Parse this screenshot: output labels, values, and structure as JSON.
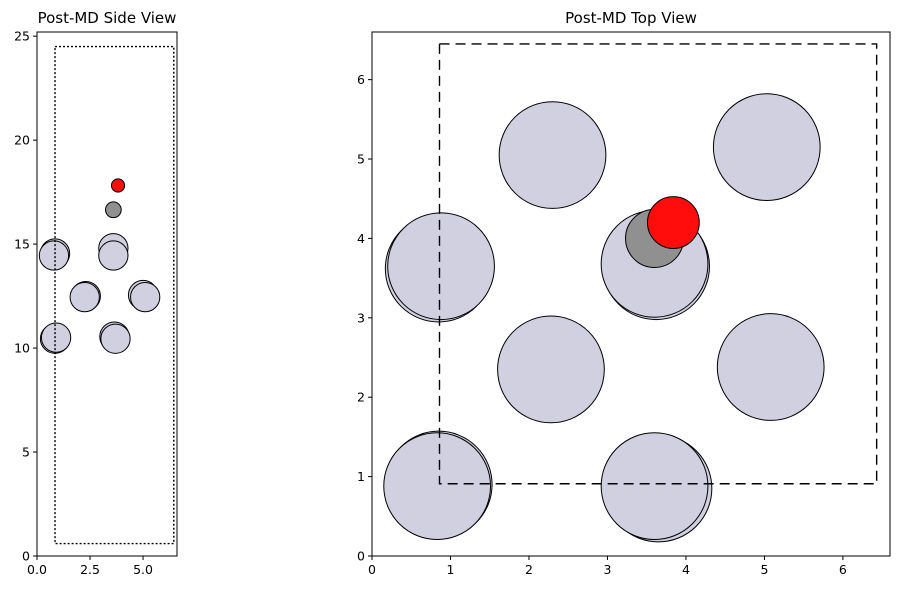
{
  "chart_data": [
    {
      "type": "scatter",
      "title": "Post-MD Side View",
      "xlabel": "",
      "ylabel": "",
      "xlim": [
        0,
        6.6
      ],
      "ylim": [
        0,
        25.2
      ],
      "xticks": [
        0.0,
        2.5,
        5.0
      ],
      "xtick_labels": [
        "0.0",
        "2.5",
        "5.0"
      ],
      "yticks": [
        0,
        5,
        10,
        15,
        20,
        25
      ],
      "ytick_labels": [
        "0",
        "5",
        "10",
        "15",
        "20",
        "25"
      ],
      "grid": false,
      "box": {
        "x": [
          0.85,
          6.45
        ],
        "y": [
          0.6,
          24.5
        ],
        "style": "dotted"
      },
      "atoms": [
        {
          "x": 0.85,
          "y": 10.45,
          "r": 0.69,
          "color": "#d0d0e0"
        },
        {
          "x": 0.9,
          "y": 10.5,
          "r": 0.69,
          "color": "#d0d0e0"
        },
        {
          "x": 3.65,
          "y": 10.55,
          "r": 0.69,
          "color": "#d0d0e0"
        },
        {
          "x": 3.7,
          "y": 10.45,
          "r": 0.69,
          "color": "#d0d0e0"
        },
        {
          "x": 2.3,
          "y": 12.5,
          "r": 0.69,
          "color": "#d0d0e0"
        },
        {
          "x": 2.25,
          "y": 12.45,
          "r": 0.69,
          "color": "#d0d0e0"
        },
        {
          "x": 5.0,
          "y": 12.55,
          "r": 0.69,
          "color": "#d0d0e0"
        },
        {
          "x": 5.1,
          "y": 12.45,
          "r": 0.69,
          "color": "#d0d0e0"
        },
        {
          "x": 0.85,
          "y": 14.55,
          "r": 0.69,
          "color": "#d0d0e0"
        },
        {
          "x": 0.8,
          "y": 14.45,
          "r": 0.69,
          "color": "#d0d0e0"
        },
        {
          "x": 3.6,
          "y": 14.8,
          "r": 0.69,
          "color": "#d0d0e0"
        },
        {
          "x": 3.6,
          "y": 14.45,
          "r": 0.69,
          "color": "#d0d0e0"
        },
        {
          "x": 3.6,
          "y": 16.65,
          "r": 0.37,
          "color": "#909090"
        },
        {
          "x": 3.82,
          "y": 17.82,
          "r": 0.31,
          "color": "#ff0d0d"
        }
      ]
    },
    {
      "type": "scatter",
      "title": "Post-MD Top View",
      "xlabel": "",
      "ylabel": "",
      "xlim": [
        0,
        6.6
      ],
      "ylim": [
        0,
        6.6
      ],
      "xticks": [
        0,
        1,
        2,
        3,
        4,
        5,
        6
      ],
      "xtick_labels": [
        "0",
        "1",
        "2",
        "3",
        "4",
        "5",
        "6"
      ],
      "yticks": [
        0,
        1,
        2,
        3,
        4,
        5,
        6
      ],
      "ytick_labels": [
        "0",
        "1",
        "2",
        "3",
        "4",
        "5",
        "6"
      ],
      "grid": false,
      "box": {
        "x": [
          0.86,
          6.43
        ],
        "y": [
          0.91,
          6.45
        ],
        "style": "dashed"
      },
      "atoms": [
        {
          "x": 0.85,
          "y": 0.9,
          "r": 0.68,
          "color": "#d0d0e0"
        },
        {
          "x": 0.83,
          "y": 0.88,
          "r": 0.68,
          "color": "#d0d0e0"
        },
        {
          "x": 3.65,
          "y": 0.85,
          "r": 0.68,
          "color": "#d0d0e0"
        },
        {
          "x": 3.6,
          "y": 0.88,
          "r": 0.68,
          "color": "#d0d0e0"
        },
        {
          "x": 2.28,
          "y": 2.35,
          "r": 0.68,
          "color": "#d0d0e0"
        },
        {
          "x": 5.08,
          "y": 2.38,
          "r": 0.68,
          "color": "#d0d0e0"
        },
        {
          "x": 0.85,
          "y": 3.62,
          "r": 0.68,
          "color": "#d0d0e0"
        },
        {
          "x": 0.88,
          "y": 3.65,
          "r": 0.68,
          "color": "#d0d0e0"
        },
        {
          "x": 3.62,
          "y": 3.65,
          "r": 0.68,
          "color": "#d0d0e0"
        },
        {
          "x": 3.6,
          "y": 3.68,
          "r": 0.68,
          "color": "#d0d0e0"
        },
        {
          "x": 2.3,
          "y": 5.05,
          "r": 0.68,
          "color": "#d0d0e0"
        },
        {
          "x": 5.03,
          "y": 5.15,
          "r": 0.68,
          "color": "#d0d0e0"
        },
        {
          "x": 3.6,
          "y": 4.0,
          "r": 0.37,
          "color": "#909090"
        },
        {
          "x": 3.84,
          "y": 4.2,
          "r": 0.33,
          "color": "#ff0d0d"
        }
      ]
    }
  ]
}
